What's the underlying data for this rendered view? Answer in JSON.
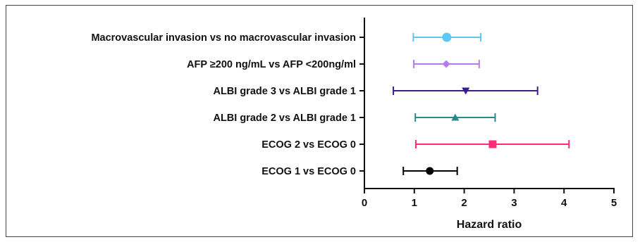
{
  "chart_data": {
    "type": "forest",
    "title": "",
    "xlabel": "Hazard ratio",
    "ylabel": "",
    "xlim": [
      0,
      5
    ],
    "xticks": [
      0,
      1,
      2,
      3,
      4,
      5
    ],
    "xtick_labels": [
      "0",
      "1",
      "2",
      "3",
      "4",
      "5"
    ],
    "grid": false,
    "legend": "none",
    "rows": [
      {
        "label": "Macrovascular invasion vs no macrovascular invasion",
        "hr": 1.65,
        "lower": 0.98,
        "upper": 2.33,
        "color": "#5bc8f5",
        "marker": "circle"
      },
      {
        "label": "AFP ≥200 ng/mL vs AFP <200ng/ml",
        "hr": 1.64,
        "lower": 0.99,
        "upper": 2.3,
        "color": "#b57af0",
        "marker": "diamond"
      },
      {
        "label": "ALBI grade 3 vs ALBI grade 1",
        "hr": 2.03,
        "lower": 0.58,
        "upper": 3.47,
        "color": "#3a1d8c",
        "marker": "triangle-down"
      },
      {
        "label": "ALBI grade 2 vs ALBI grade 1",
        "hr": 1.82,
        "lower": 1.02,
        "upper": 2.62,
        "color": "#2a8a8a",
        "marker": "triangle-up"
      },
      {
        "label": "ECOG 2 vs ECOG 0",
        "hr": 2.57,
        "lower": 1.03,
        "upper": 4.1,
        "color": "#ff2a7a",
        "marker": "square"
      },
      {
        "label": "ECOG 1 vs ECOG 0",
        "hr": 1.31,
        "lower": 0.78,
        "upper": 1.86,
        "color": "#000000",
        "marker": "circle"
      }
    ]
  }
}
